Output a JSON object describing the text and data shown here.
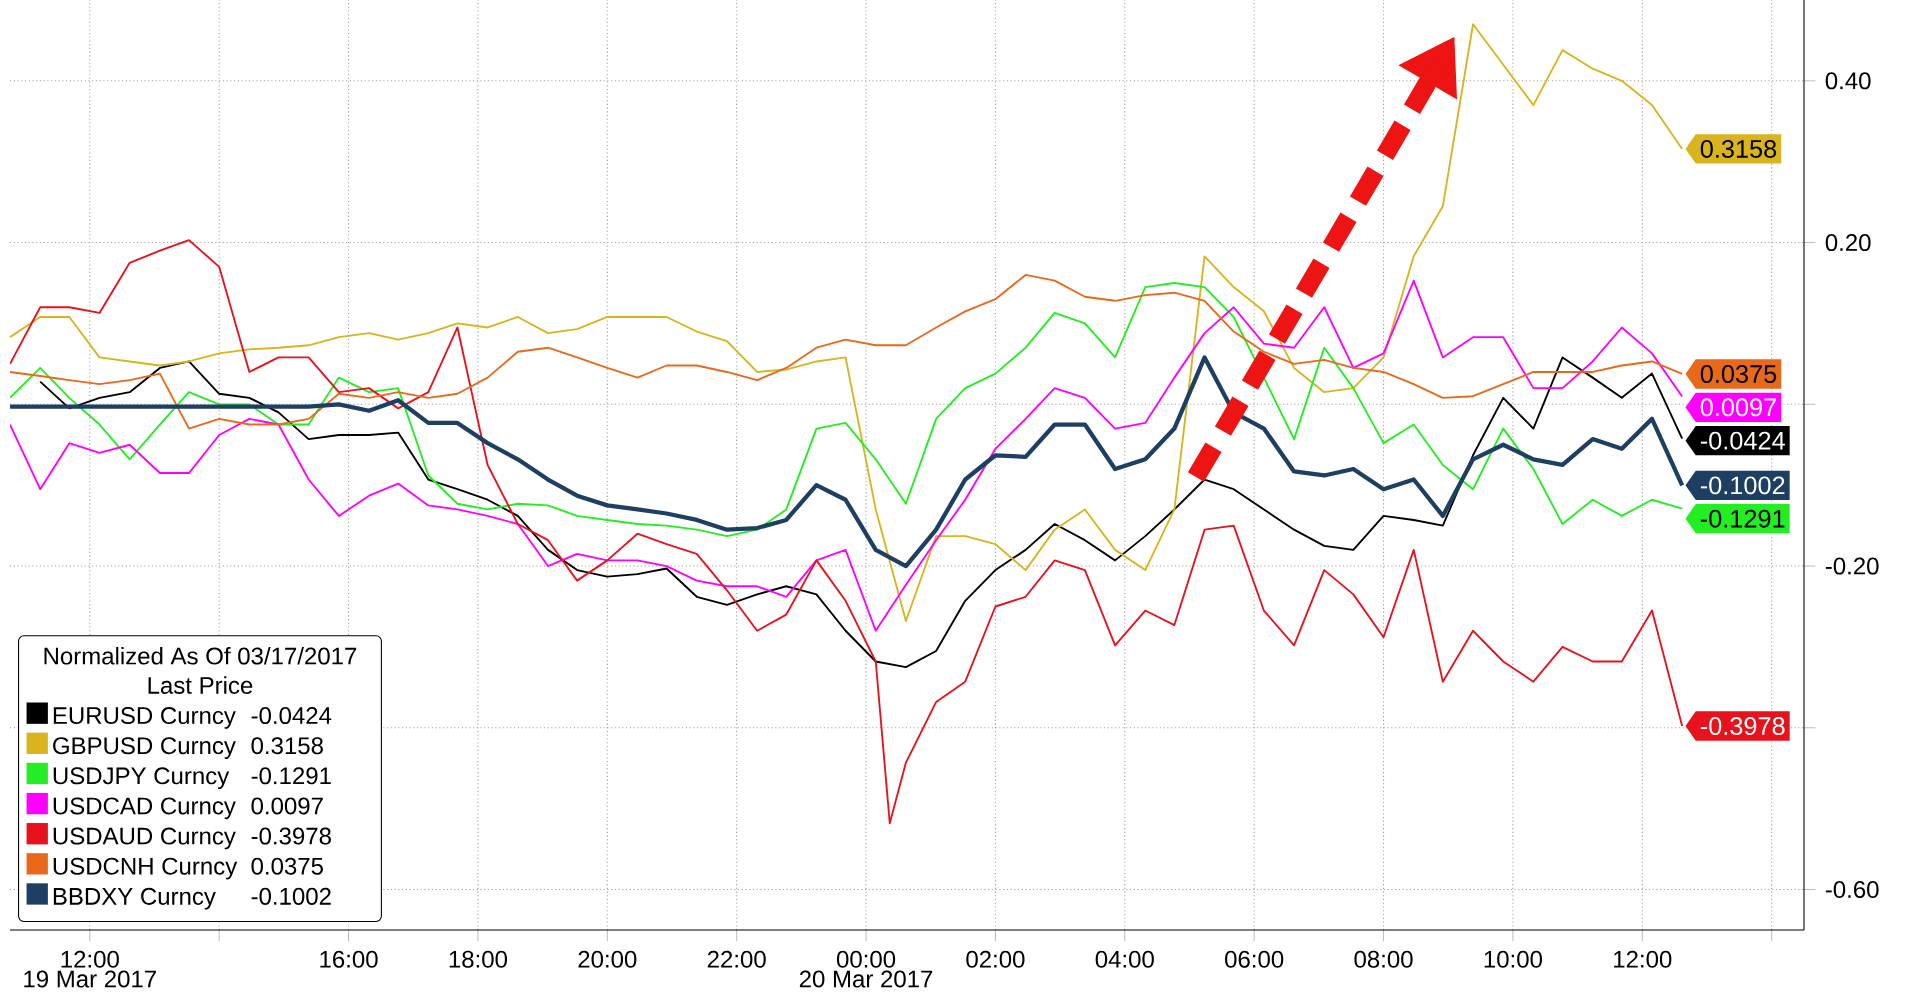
{
  "chart_data": {
    "type": "line",
    "x": [
      "2017-03-19T10:46",
      "2017-03-19T11:14",
      "2017-03-19T11:41",
      "2017-03-19T12:09",
      "2017-03-19T12:37",
      "2017-03-19T13:05",
      "2017-03-19T13:32",
      "2017-03-19T14:00",
      "2017-03-19T14:28",
      "2017-03-19T14:55",
      "2017-03-19T15:23",
      "2017-03-19T15:51",
      "2017-03-19T16:19",
      "2017-03-19T16:46",
      "2017-03-19T17:14",
      "2017-03-19T17:41",
      "2017-03-19T18:09",
      "2017-03-19T18:37",
      "2017-03-19T19:05",
      "2017-03-19T19:32",
      "2017-03-19T20:00",
      "2017-03-19T20:28",
      "2017-03-19T20:55",
      "2017-03-19T21:23",
      "2017-03-19T21:51",
      "2017-03-19T22:19",
      "2017-03-19T22:46",
      "2017-03-19T23:14",
      "2017-03-19T23:41",
      "2017-03-20T00:09",
      "2017-03-20T00:37",
      "2017-03-20T01:05",
      "2017-03-20T01:32",
      "2017-03-20T02:00",
      "2017-03-20T02:28",
      "2017-03-20T02:55",
      "2017-03-20T03:23",
      "2017-03-20T03:51",
      "2017-03-20T04:19",
      "2017-03-20T04:46",
      "2017-03-20T05:14",
      "2017-03-20T05:41",
      "2017-03-20T06:09",
      "2017-03-20T06:37",
      "2017-03-20T07:05",
      "2017-03-20T07:32",
      "2017-03-20T08:00",
      "2017-03-20T08:28",
      "2017-03-20T08:55",
      "2017-03-20T09:23",
      "2017-03-20T09:51",
      "2017-03-20T10:19",
      "2017-03-20T10:46",
      "2017-03-20T11:14",
      "2017-03-20T11:41",
      "2017-03-20T12:09",
      "2017-03-20T12:37"
    ],
    "xlim": [
      "2017-03-19T10:46",
      "2017-03-20T14:30"
    ],
    "ylim": [
      -0.65,
      0.5
    ],
    "xticks": [
      {
        "value": "2017-03-19T12:00",
        "label": "12:00"
      },
      {
        "value": "2017-03-19T14:00",
        "label": null
      },
      {
        "value": "2017-03-19T16:00",
        "label": "16:00"
      },
      {
        "value": "2017-03-19T18:00",
        "label": "18:00"
      },
      {
        "value": "2017-03-19T20:00",
        "label": "20:00"
      },
      {
        "value": "2017-03-19T22:00",
        "label": "22:00"
      },
      {
        "value": "2017-03-20T00:00",
        "label": "00:00"
      },
      {
        "value": "2017-03-20T02:00",
        "label": "02:00"
      },
      {
        "value": "2017-03-20T04:00",
        "label": "04:00"
      },
      {
        "value": "2017-03-20T06:00",
        "label": "06:00"
      },
      {
        "value": "2017-03-20T08:00",
        "label": "08:00"
      },
      {
        "value": "2017-03-20T10:00",
        "label": "10:00"
      },
      {
        "value": "2017-03-20T12:00",
        "label": "12:00"
      },
      {
        "value": "2017-03-20T14:00",
        "label": null
      }
    ],
    "yticks": [
      {
        "value": 0.4,
        "label": "0.40"
      },
      {
        "value": 0.2,
        "label": "0.20"
      },
      {
        "value": 0,
        "label": null
      },
      {
        "value": -0.2,
        "label": "-0.20"
      },
      {
        "value": -0.4,
        "label": null
      },
      {
        "value": -0.6,
        "label": "-0.60"
      }
    ],
    "grid": true,
    "marker": "none",
    "legend": "bottom left",
    "legend_title": "Normalized As Of 03/17/2017",
    "annotations": [
      "Last Price",
      "19 Mar 2017",
      "20 Mar 2017"
    ],
    "series": [
      {
        "name": "EURUSD Curncy",
        "color": "#000000",
        "values": [
          null,
          0.028,
          -0.005,
          0.008,
          0.015,
          0.045,
          0.053,
          0.013,
          0.008,
          -0.01,
          -0.043,
          -0.038,
          -0.038,
          -0.035,
          -0.093,
          -0.105,
          -0.118,
          -0.138,
          -0.18,
          -0.205,
          -0.213,
          -0.21,
          -0.203,
          -0.238,
          -0.248,
          -0.235,
          -0.225,
          -0.235,
          -0.28,
          -0.318,
          -0.325,
          -0.305,
          -0.243,
          -0.205,
          -0.18,
          -0.148,
          -0.168,
          -0.193,
          -0.163,
          -0.13,
          -0.093,
          -0.105,
          -0.13,
          -0.155,
          -0.175,
          -0.18,
          -0.138,
          -0.143,
          -0.15,
          -0.063,
          0.008,
          -0.03,
          0.058,
          0.033,
          0.008,
          0.038,
          -0.0424
        ],
        "value_labels": [
          null,
          null,
          null,
          null,
          null,
          null,
          null,
          null,
          null,
          null,
          null,
          null,
          null,
          null,
          null,
          null,
          null,
          null,
          null,
          null,
          null,
          null,
          null,
          null,
          null,
          null,
          null,
          null,
          null,
          null,
          null,
          null,
          null,
          null,
          null,
          null,
          null,
          null,
          null,
          null,
          null,
          null,
          null,
          null,
          null,
          null,
          null,
          null,
          null,
          null,
          null,
          null,
          null,
          null,
          null,
          null,
          "-0.0424"
        ]
      },
      {
        "name": "GBPUSD Curncy",
        "color": "#d9b41c",
        "values": [
          0.083,
          0.108,
          0.108,
          0.058,
          0.053,
          0.048,
          0.053,
          0.063,
          0.068,
          0.07,
          0.073,
          0.083,
          0.088,
          0.08,
          0.088,
          0.1,
          0.095,
          0.108,
          0.088,
          0.093,
          0.108,
          0.108,
          0.108,
          0.09,
          0.078,
          0.04,
          0.043,
          0.053,
          0.058,
          -0.13,
          -0.268,
          -0.163,
          -0.163,
          -0.173,
          -0.205,
          -0.155,
          -0.13,
          -0.18,
          -0.205,
          -0.13,
          0.183,
          0.145,
          0.115,
          0.045,
          0.015,
          0.02,
          0.058,
          0.183,
          0.245,
          0.47,
          0.42,
          0.37,
          0.438,
          0.415,
          0.4,
          0.37,
          0.3158
        ],
        "value_labels": [
          null,
          null,
          null,
          null,
          null,
          null,
          null,
          null,
          null,
          null,
          null,
          null,
          null,
          null,
          null,
          null,
          null,
          null,
          null,
          null,
          null,
          null,
          null,
          null,
          null,
          null,
          null,
          null,
          null,
          null,
          null,
          null,
          null,
          null,
          null,
          null,
          null,
          null,
          null,
          null,
          null,
          null,
          null,
          null,
          null,
          null,
          null,
          null,
          null,
          null,
          null,
          null,
          null,
          null,
          null,
          null,
          "0.3158"
        ]
      },
      {
        "name": "USDJPY Curncy",
        "color": "#22ee22",
        "values": [
          0.008,
          0.045,
          0.008,
          -0.025,
          -0.068,
          -0.025,
          0.015,
          0,
          0,
          -0.025,
          -0.025,
          0.033,
          0.015,
          0.02,
          -0.088,
          -0.123,
          -0.13,
          -0.123,
          -0.125,
          -0.138,
          -0.143,
          -0.148,
          -0.15,
          -0.155,
          -0.163,
          -0.155,
          -0.13,
          -0.03,
          -0.023,
          -0.068,
          -0.123,
          -0.018,
          0.02,
          0.038,
          0.07,
          0.113,
          0.1,
          0.058,
          0.145,
          0.15,
          0.145,
          0.108,
          0.033,
          -0.043,
          0.07,
          0.02,
          -0.048,
          -0.025,
          -0.075,
          -0.105,
          -0.03,
          -0.08,
          -0.148,
          -0.118,
          -0.138,
          -0.118,
          -0.1291
        ],
        "value_labels": [
          null,
          null,
          null,
          null,
          null,
          null,
          null,
          null,
          null,
          null,
          null,
          null,
          null,
          null,
          null,
          null,
          null,
          null,
          null,
          null,
          null,
          null,
          null,
          null,
          null,
          null,
          null,
          null,
          null,
          null,
          null,
          null,
          null,
          null,
          null,
          null,
          null,
          null,
          null,
          null,
          null,
          null,
          null,
          null,
          null,
          null,
          null,
          null,
          null,
          null,
          null,
          null,
          null,
          null,
          null,
          null,
          "-0.1291"
        ]
      },
      {
        "name": "USDCAD Curncy",
        "color": "#ff00ff",
        "values": [
          -0.025,
          -0.105,
          -0.048,
          -0.06,
          -0.05,
          -0.085,
          -0.085,
          -0.038,
          -0.018,
          -0.025,
          -0.093,
          -0.138,
          -0.113,
          -0.098,
          -0.125,
          -0.13,
          -0.138,
          -0.148,
          -0.2,
          -0.185,
          -0.193,
          -0.193,
          -0.2,
          -0.218,
          -0.225,
          -0.225,
          -0.238,
          -0.193,
          -0.18,
          -0.28,
          -0.223,
          -0.168,
          -0.118,
          -0.055,
          -0.018,
          0.02,
          0.008,
          -0.03,
          -0.023,
          0.033,
          0.088,
          0.12,
          0.075,
          0.07,
          0.12,
          0.045,
          0.063,
          0.153,
          0.058,
          0.083,
          0.083,
          0.02,
          0.02,
          0.053,
          0.095,
          0.063,
          0.0097
        ],
        "value_labels": [
          null,
          null,
          null,
          null,
          null,
          null,
          null,
          null,
          null,
          null,
          null,
          null,
          null,
          null,
          null,
          null,
          null,
          null,
          null,
          null,
          null,
          null,
          null,
          null,
          null,
          null,
          null,
          null,
          null,
          null,
          null,
          null,
          null,
          null,
          null,
          null,
          null,
          null,
          null,
          null,
          null,
          null,
          null,
          null,
          null,
          null,
          null,
          null,
          null,
          null,
          null,
          null,
          null,
          null,
          null,
          null,
          "0.0097"
        ]
      },
      {
        "name": "USDAUD Curncy",
        "color": "#e8121c",
        "x": [
          "2017-03-19T10:46",
          "2017-03-19T11:14",
          "2017-03-19T11:41",
          "2017-03-19T12:09",
          "2017-03-19T12:37",
          "2017-03-19T13:05",
          "2017-03-19T13:32",
          "2017-03-19T14:00",
          "2017-03-19T14:28",
          "2017-03-19T14:55",
          "2017-03-19T15:23",
          "2017-03-19T15:51",
          "2017-03-19T16:19",
          "2017-03-19T16:46",
          "2017-03-19T17:14",
          "2017-03-19T17:41",
          "2017-03-19T18:09",
          "2017-03-19T18:37",
          "2017-03-19T19:05",
          "2017-03-19T19:32",
          "2017-03-19T20:00",
          "2017-03-19T20:28",
          "2017-03-19T20:55",
          "2017-03-19T21:23",
          "2017-03-19T21:51",
          "2017-03-19T22:19",
          "2017-03-19T22:46",
          "2017-03-19T23:14",
          "2017-03-19T23:41",
          "2017-03-20T00:09",
          "2017-03-20T00:22",
          "2017-03-20T00:37",
          "2017-03-20T01:05",
          "2017-03-20T01:32",
          "2017-03-20T02:00",
          "2017-03-20T02:28",
          "2017-03-20T02:55",
          "2017-03-20T03:23",
          "2017-03-20T03:51",
          "2017-03-20T04:19",
          "2017-03-20T04:46",
          "2017-03-20T05:14",
          "2017-03-20T05:41",
          "2017-03-20T06:09",
          "2017-03-20T06:37",
          "2017-03-20T07:05",
          "2017-03-20T07:32",
          "2017-03-20T08:00",
          "2017-03-20T08:28",
          "2017-03-20T08:55",
          "2017-03-20T09:23",
          "2017-03-20T09:51",
          "2017-03-20T10:19",
          "2017-03-20T10:46",
          "2017-03-20T11:14",
          "2017-03-20T11:41",
          "2017-03-20T12:09",
          "2017-03-20T12:37"
        ],
        "values": [
          0.05,
          0.12,
          0.12,
          0.113,
          0.175,
          0.19,
          0.203,
          0.17,
          0.04,
          0.058,
          0.058,
          0.015,
          0.02,
          -0.005,
          0.015,
          0.095,
          -0.075,
          -0.148,
          -0.168,
          -0.218,
          -0.193,
          -0.16,
          -0.173,
          -0.185,
          -0.23,
          -0.28,
          -0.26,
          -0.193,
          -0.243,
          -0.318,
          -0.518,
          -0.443,
          -0.368,
          -0.343,
          -0.25,
          -0.238,
          -0.193,
          -0.205,
          -0.298,
          -0.255,
          -0.273,
          -0.155,
          -0.15,
          -0.255,
          -0.298,
          -0.205,
          -0.235,
          -0.288,
          -0.18,
          -0.343,
          -0.28,
          -0.318,
          -0.343,
          -0.3,
          -0.318,
          -0.318,
          -0.255,
          -0.3978
        ],
        "value_labels": [
          null,
          null,
          null,
          null,
          null,
          null,
          null,
          null,
          null,
          null,
          null,
          null,
          null,
          null,
          null,
          null,
          null,
          null,
          null,
          null,
          null,
          null,
          null,
          null,
          null,
          null,
          null,
          null,
          null,
          null,
          null,
          null,
          null,
          null,
          null,
          null,
          null,
          null,
          null,
          null,
          null,
          null,
          null,
          null,
          null,
          null,
          null,
          null,
          null,
          null,
          null,
          null,
          null,
          null,
          null,
          null,
          null,
          "-0.3978"
        ]
      },
      {
        "name": "USDCNH Curncy",
        "color": "#e8691a",
        "values": [
          0.04,
          0.035,
          0.03,
          0.025,
          0.03,
          0.038,
          -0.03,
          -0.018,
          -0.025,
          -0.025,
          -0.018,
          0.013,
          0.008,
          0.015,
          0.008,
          0.013,
          0.033,
          0.065,
          0.07,
          0.058,
          0.045,
          0.033,
          0.048,
          0.048,
          0.04,
          0.03,
          0.045,
          0.07,
          0.08,
          0.073,
          0.073,
          0.095,
          0.115,
          0.13,
          0.16,
          0.153,
          0.133,
          0.128,
          0.135,
          0.138,
          0.128,
          0.09,
          0.065,
          0.05,
          0.055,
          0.045,
          0.04,
          0.025,
          0.008,
          0.01,
          0.025,
          0.04,
          0.04,
          0.04,
          0.048,
          0.053,
          0.0375
        ],
        "value_labels": [
          null,
          null,
          null,
          null,
          null,
          null,
          null,
          null,
          null,
          null,
          null,
          null,
          null,
          null,
          null,
          null,
          null,
          null,
          null,
          null,
          null,
          null,
          null,
          null,
          null,
          null,
          null,
          null,
          null,
          null,
          null,
          null,
          null,
          null,
          null,
          null,
          null,
          null,
          null,
          null,
          null,
          null,
          null,
          null,
          null,
          null,
          null,
          null,
          null,
          null,
          null,
          null,
          null,
          null,
          null,
          null,
          "0.0375"
        ]
      },
      {
        "name": "BBDXY Curncy",
        "color": "#1d3f63",
        "values": [
          -0.003,
          -0.003,
          -0.003,
          -0.003,
          -0.003,
          -0.003,
          -0.003,
          -0.003,
          -0.003,
          -0.003,
          -0.003,
          0,
          -0.008,
          0.005,
          -0.023,
          -0.023,
          -0.048,
          -0.068,
          -0.093,
          -0.113,
          -0.125,
          -0.13,
          -0.135,
          -0.143,
          -0.155,
          -0.153,
          -0.143,
          -0.1,
          -0.118,
          -0.18,
          -0.2,
          -0.155,
          -0.093,
          -0.063,
          -0.065,
          -0.025,
          -0.025,
          -0.08,
          -0.068,
          -0.03,
          0.058,
          -0.01,
          -0.03,
          -0.083,
          -0.088,
          -0.08,
          -0.105,
          -0.093,
          -0.138,
          -0.068,
          -0.05,
          -0.068,
          -0.075,
          -0.043,
          -0.055,
          -0.018,
          -0.1002
        ],
        "value_labels": [
          null,
          null,
          null,
          null,
          null,
          null,
          null,
          null,
          null,
          null,
          null,
          null,
          null,
          null,
          null,
          null,
          null,
          null,
          null,
          null,
          null,
          null,
          null,
          null,
          null,
          null,
          null,
          null,
          null,
          null,
          null,
          null,
          null,
          null,
          null,
          null,
          null,
          null,
          null,
          null,
          null,
          null,
          null,
          null,
          null,
          null,
          null,
          null,
          null,
          null,
          null,
          null,
          null,
          null,
          null,
          null,
          "-0.1002"
        ]
      }
    ]
  }
}
